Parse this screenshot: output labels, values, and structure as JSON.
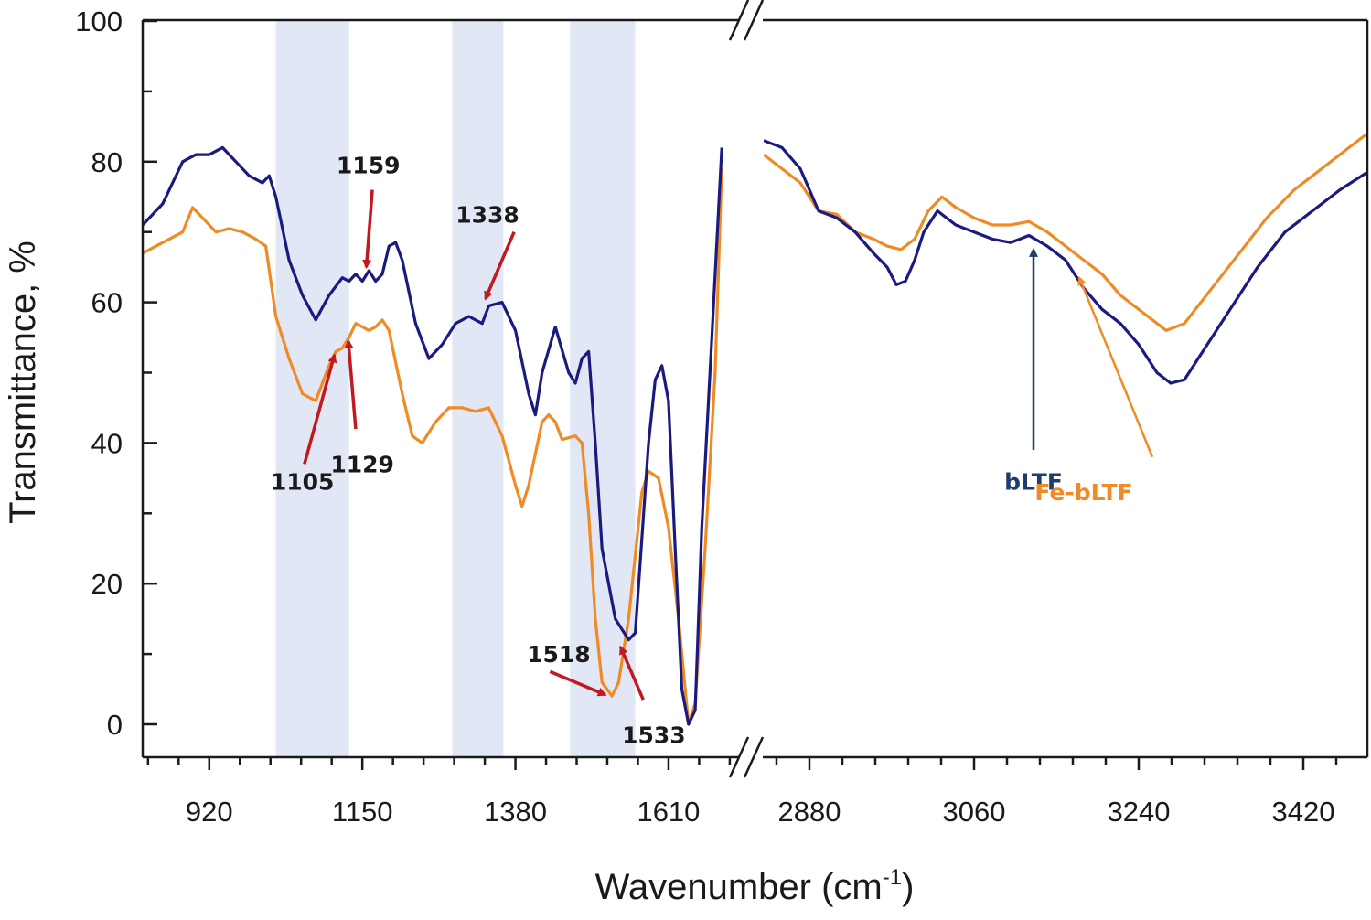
{
  "chart_data": {
    "type": "line",
    "xlabel": "Wavenumber (cm",
    "xlabel_sup": "-1",
    "xlabel_end": ")",
    "ylabel": "Transmittance, %",
    "ylim": [
      0,
      100
    ],
    "y_ticks": [
      0,
      20,
      40,
      60,
      80,
      100
    ],
    "grid": false,
    "axis_break": true,
    "panels": [
      {
        "name": "low",
        "xlim": [
          820,
          1720
        ],
        "x_ticks": [
          920,
          1150,
          1380,
          1610
        ]
      },
      {
        "name": "high",
        "xlim": [
          2830,
          3490
        ],
        "x_ticks": [
          2880,
          3060,
          3240,
          3420
        ]
      }
    ],
    "shaded_regions": [
      [
        1020,
        1130
      ],
      [
        1285,
        1362
      ],
      [
        1462,
        1560
      ]
    ],
    "series": [
      {
        "name": "bLTF",
        "color": "#1a1a80",
        "low": [
          [
            820,
            71
          ],
          [
            850,
            74
          ],
          [
            880,
            80
          ],
          [
            900,
            81
          ],
          [
            920,
            81
          ],
          [
            940,
            82
          ],
          [
            960,
            80
          ],
          [
            980,
            78
          ],
          [
            1000,
            77
          ],
          [
            1010,
            78
          ],
          [
            1020,
            75
          ],
          [
            1040,
            66
          ],
          [
            1060,
            61
          ],
          [
            1080,
            57.5
          ],
          [
            1100,
            61
          ],
          [
            1120,
            63.5
          ],
          [
            1130,
            63
          ],
          [
            1140,
            64
          ],
          [
            1150,
            63
          ],
          [
            1160,
            64.5
          ],
          [
            1170,
            63
          ],
          [
            1180,
            64
          ],
          [
            1190,
            68
          ],
          [
            1200,
            68.5
          ],
          [
            1210,
            66
          ],
          [
            1230,
            57
          ],
          [
            1250,
            52
          ],
          [
            1270,
            54
          ],
          [
            1290,
            57
          ],
          [
            1310,
            58
          ],
          [
            1330,
            57
          ],
          [
            1340,
            59.5
          ],
          [
            1360,
            60
          ],
          [
            1380,
            56
          ],
          [
            1400,
            47
          ],
          [
            1410,
            44
          ],
          [
            1420,
            50
          ],
          [
            1440,
            56.5
          ],
          [
            1460,
            50
          ],
          [
            1470,
            48.5
          ],
          [
            1480,
            52
          ],
          [
            1490,
            53
          ],
          [
            1500,
            40
          ],
          [
            1510,
            25
          ],
          [
            1530,
            15
          ],
          [
            1550,
            12
          ],
          [
            1560,
            13
          ],
          [
            1580,
            40
          ],
          [
            1590,
            49
          ],
          [
            1600,
            51
          ],
          [
            1610,
            46
          ],
          [
            1620,
            25
          ],
          [
            1630,
            5
          ],
          [
            1640,
            0
          ],
          [
            1650,
            2
          ],
          [
            1660,
            28
          ],
          [
            1675,
            55
          ],
          [
            1690,
            82
          ]
        ],
        "high": [
          [
            2830,
            83
          ],
          [
            2850,
            82
          ],
          [
            2870,
            79
          ],
          [
            2890,
            73
          ],
          [
            2910,
            72
          ],
          [
            2930,
            70
          ],
          [
            2950,
            67
          ],
          [
            2965,
            65
          ],
          [
            2975,
            62.5
          ],
          [
            2985,
            63
          ],
          [
            2995,
            66
          ],
          [
            3005,
            70
          ],
          [
            3020,
            73
          ],
          [
            3040,
            71
          ],
          [
            3060,
            70
          ],
          [
            3080,
            69
          ],
          [
            3100,
            68.5
          ],
          [
            3120,
            69.5
          ],
          [
            3140,
            68
          ],
          [
            3160,
            66
          ],
          [
            3180,
            62
          ],
          [
            3200,
            59
          ],
          [
            3220,
            57
          ],
          [
            3240,
            54
          ],
          [
            3260,
            50
          ],
          [
            3275,
            48.5
          ],
          [
            3290,
            49
          ],
          [
            3310,
            53
          ],
          [
            3340,
            59
          ],
          [
            3370,
            65
          ],
          [
            3400,
            70
          ],
          [
            3430,
            73
          ],
          [
            3460,
            76
          ],
          [
            3490,
            78.5
          ]
        ]
      },
      {
        "name": "Fe-bLTF",
        "color": "#f08a24",
        "low": [
          [
            820,
            67
          ],
          [
            840,
            68
          ],
          [
            860,
            69
          ],
          [
            880,
            70
          ],
          [
            895,
            73.5
          ],
          [
            910,
            72
          ],
          [
            930,
            70
          ],
          [
            950,
            70.5
          ],
          [
            970,
            70
          ],
          [
            990,
            69
          ],
          [
            1005,
            68
          ],
          [
            1020,
            58
          ],
          [
            1040,
            52
          ],
          [
            1060,
            47
          ],
          [
            1080,
            46
          ],
          [
            1100,
            51
          ],
          [
            1110,
            53
          ],
          [
            1120,
            53.5
          ],
          [
            1130,
            55
          ],
          [
            1140,
            57
          ],
          [
            1150,
            56.5
          ],
          [
            1160,
            56
          ],
          [
            1170,
            56.5
          ],
          [
            1180,
            57.5
          ],
          [
            1190,
            56
          ],
          [
            1210,
            47
          ],
          [
            1225,
            41
          ],
          [
            1240,
            40
          ],
          [
            1260,
            43
          ],
          [
            1280,
            45
          ],
          [
            1300,
            45
          ],
          [
            1320,
            44.5
          ],
          [
            1340,
            45
          ],
          [
            1360,
            41
          ],
          [
            1380,
            34
          ],
          [
            1390,
            31
          ],
          [
            1400,
            34
          ],
          [
            1420,
            43
          ],
          [
            1430,
            44
          ],
          [
            1440,
            43
          ],
          [
            1450,
            40.5
          ],
          [
            1470,
            41
          ],
          [
            1480,
            40
          ],
          [
            1490,
            30
          ],
          [
            1500,
            15
          ],
          [
            1510,
            6
          ],
          [
            1525,
            4
          ],
          [
            1535,
            6
          ],
          [
            1550,
            15
          ],
          [
            1570,
            33
          ],
          [
            1580,
            36
          ],
          [
            1595,
            35
          ],
          [
            1610,
            28
          ],
          [
            1625,
            15
          ],
          [
            1640,
            0
          ],
          [
            1650,
            3
          ],
          [
            1665,
            25
          ],
          [
            1680,
            50
          ],
          [
            1690,
            79
          ]
        ],
        "high": [
          [
            2830,
            81
          ],
          [
            2850,
            79
          ],
          [
            2870,
            77
          ],
          [
            2890,
            73
          ],
          [
            2910,
            72.5
          ],
          [
            2930,
            70
          ],
          [
            2950,
            69
          ],
          [
            2965,
            68
          ],
          [
            2980,
            67.5
          ],
          [
            2995,
            69
          ],
          [
            3010,
            73
          ],
          [
            3025,
            75
          ],
          [
            3040,
            73.5
          ],
          [
            3060,
            72
          ],
          [
            3080,
            71
          ],
          [
            3100,
            71
          ],
          [
            3120,
            71.5
          ],
          [
            3140,
            70
          ],
          [
            3160,
            68
          ],
          [
            3180,
            66
          ],
          [
            3200,
            64
          ],
          [
            3220,
            61
          ],
          [
            3250,
            58
          ],
          [
            3270,
            56
          ],
          [
            3290,
            57
          ],
          [
            3320,
            62
          ],
          [
            3350,
            67
          ],
          [
            3380,
            72
          ],
          [
            3410,
            76
          ],
          [
            3440,
            79
          ],
          [
            3470,
            82
          ],
          [
            3490,
            84
          ]
        ]
      }
    ],
    "annotations": [
      {
        "text": "1159",
        "label_x": 1159,
        "label_y": 79.5,
        "arrow_from": [
          1165,
          76
        ],
        "arrow_to": [
          1156,
          65
        ],
        "panel": "low"
      },
      {
        "text": "1338",
        "label_x": 1338,
        "label_y": 72.5,
        "arrow_from": [
          1378,
          70
        ],
        "arrow_to": [
          1335,
          60.5
        ],
        "panel": "low"
      },
      {
        "text": "1105",
        "label_x": 1060,
        "label_y": 34.5,
        "arrow_from": [
          1063,
          37
        ],
        "arrow_to": [
          1108,
          52.5
        ],
        "panel": "low"
      },
      {
        "text": "1129",
        "label_x": 1150,
        "label_y": 37,
        "arrow_from": [
          1140,
          42
        ],
        "arrow_to": [
          1129,
          54.5
        ],
        "panel": "low"
      },
      {
        "text": "1518",
        "label_x": 1445,
        "label_y": 10,
        "arrow_from": [
          1432,
          7.5
        ],
        "arrow_to": [
          1515,
          4.2
        ],
        "panel": "low"
      },
      {
        "text": "1533",
        "label_x": 1588,
        "label_y": -1.5,
        "arrow_from": [
          1572,
          3.5
        ],
        "arrow_to": [
          1538,
          11
        ],
        "panel": "low"
      },
      {
        "text": "bLTF",
        "label_x": 3125,
        "label_y": 34.5,
        "arrow_from": [
          3125,
          39
        ],
        "arrow_to": [
          3125,
          67.5
        ],
        "panel": "high",
        "color": "#1f3c6e"
      },
      {
        "text": "Fe-bLTF",
        "label_x": 3180,
        "label_y": 33,
        "arrow_from": [
          3255,
          38
        ],
        "arrow_to": [
          3175,
          63.5
        ],
        "panel": "high",
        "color": "#f08a24"
      }
    ]
  }
}
